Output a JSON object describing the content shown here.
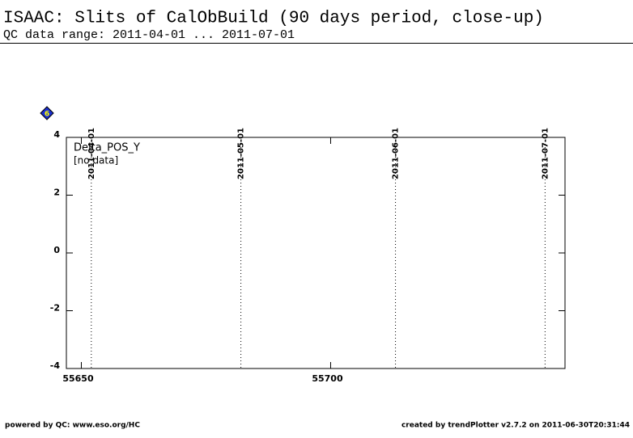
{
  "title": "ISAAC: Slits of CalObBuild (90 days period, close-up)",
  "subtitle": "QC data range: 2011-04-01 ... 2011-07-01",
  "badge": "6",
  "chart_data": {
    "type": "scatter",
    "panel_label": "Delta_POS_Y",
    "note": "[no data]",
    "series": [],
    "xlim": [
      55647,
      55747
    ],
    "xticks": [
      55650,
      55700
    ],
    "ylim": [
      -4,
      4
    ],
    "yticks": [
      -4,
      -2,
      0,
      2,
      4
    ],
    "date_markers": [
      {
        "label": "2011-04-01",
        "x": 55652
      },
      {
        "label": "2011-05-01",
        "x": 55682
      },
      {
        "label": "2011-06-01",
        "x": 55713
      },
      {
        "label": "2011-07-01",
        "x": 55743
      }
    ]
  },
  "footer": {
    "left": "powered by QC: www.eso.org/HC",
    "right": "created by trendPlotter v2.7.2 on 2011-06-30T20:31:44"
  }
}
